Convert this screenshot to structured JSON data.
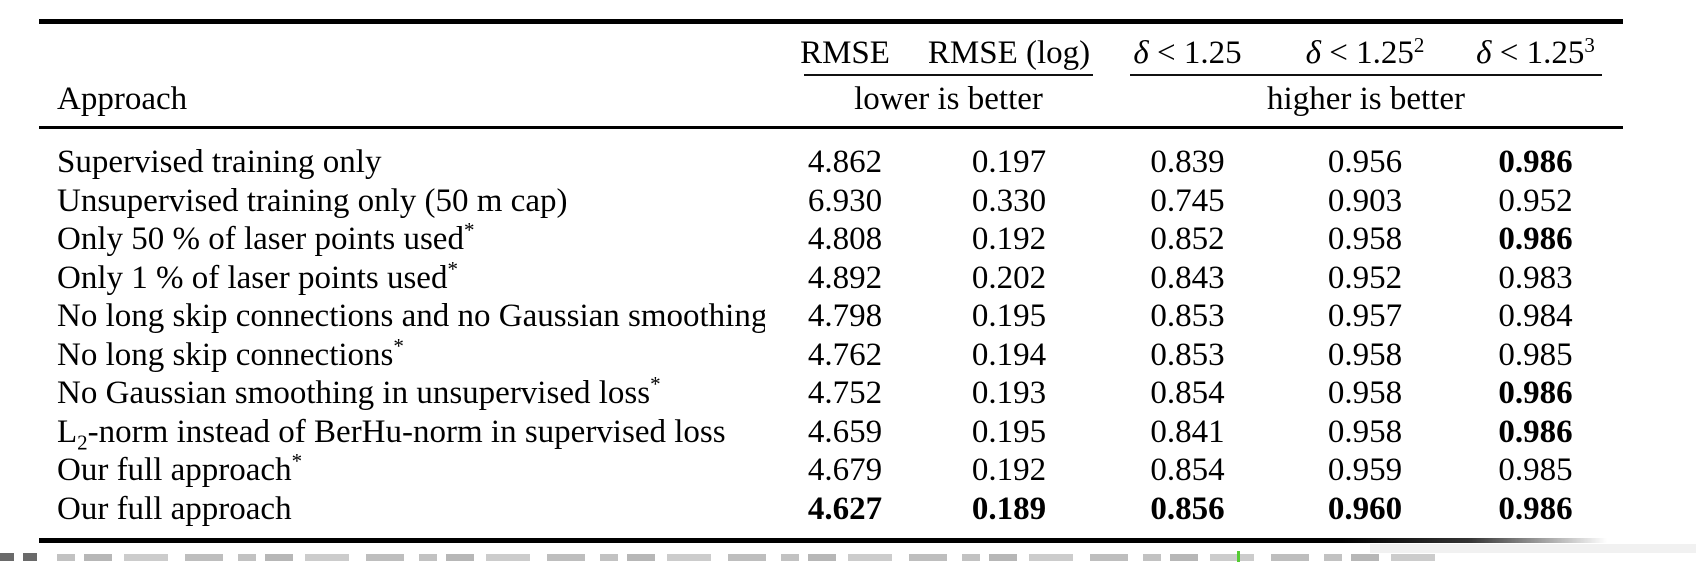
{
  "table": {
    "approach_header": "Approach",
    "columns": [
      {
        "sym": "",
        "label": "RMSE",
        "sup": ""
      },
      {
        "sym": "",
        "label": "RMSE (log)",
        "sup": ""
      },
      {
        "sym": "δ",
        "label": " < 1.25",
        "sup": ""
      },
      {
        "sym": "δ",
        "label": " < 1.25",
        "sup": "2"
      },
      {
        "sym": "δ",
        "label": " < 1.25",
        "sup": "3"
      }
    ],
    "group_labels": {
      "lower": "lower is better",
      "higher": "higher is better"
    },
    "rows": [
      {
        "approach": "Supervised training only",
        "marker": "",
        "values": [
          "4.862",
          "0.197",
          "0.839",
          "0.956",
          "0.986"
        ],
        "bold": [
          false,
          false,
          false,
          false,
          true
        ]
      },
      {
        "approach": "Unsupervised training only (50 m cap)",
        "marker": "",
        "values": [
          "6.930",
          "0.330",
          "0.745",
          "0.903",
          "0.952"
        ],
        "bold": [
          false,
          false,
          false,
          false,
          false
        ]
      },
      {
        "approach": "Only 50 % of laser points used",
        "marker": "*",
        "values": [
          "4.808",
          "0.192",
          "0.852",
          "0.958",
          "0.986"
        ],
        "bold": [
          false,
          false,
          false,
          false,
          true
        ]
      },
      {
        "approach": "Only 1 % of laser points used",
        "marker": "*",
        "values": [
          "4.892",
          "0.202",
          "0.843",
          "0.952",
          "0.983"
        ],
        "bold": [
          false,
          false,
          false,
          false,
          false
        ]
      },
      {
        "approach": "No long skip connections and no Gaussian smoothing",
        "marker": "*",
        "values": [
          "4.798",
          "0.195",
          "0.853",
          "0.957",
          "0.984"
        ],
        "bold": [
          false,
          false,
          false,
          false,
          false
        ]
      },
      {
        "approach": "No long skip connections",
        "marker": "*",
        "values": [
          "4.762",
          "0.194",
          "0.853",
          "0.958",
          "0.985"
        ],
        "bold": [
          false,
          false,
          false,
          false,
          false
        ]
      },
      {
        "approach": "No Gaussian smoothing in unsupervised loss",
        "marker": "*",
        "values": [
          "4.752",
          "0.193",
          "0.854",
          "0.958",
          "0.986"
        ],
        "bold": [
          false,
          false,
          false,
          false,
          true
        ]
      },
      {
        "approach_prefix": "L",
        "approach_sub": "2",
        "approach": "-norm instead of BerHu-norm in supervised loss",
        "marker": "",
        "values": [
          "4.659",
          "0.195",
          "0.841",
          "0.958",
          "0.986"
        ],
        "bold": [
          false,
          false,
          false,
          false,
          true
        ]
      },
      {
        "approach": "Our full approach",
        "marker": "*",
        "values": [
          "4.679",
          "0.192",
          "0.854",
          "0.959",
          "0.985"
        ],
        "bold": [
          false,
          false,
          false,
          false,
          false
        ]
      },
      {
        "approach": "Our full approach",
        "marker": "",
        "values": [
          "4.627",
          "0.189",
          "0.856",
          "0.960",
          "0.986"
        ],
        "bold": [
          true,
          true,
          true,
          true,
          true
        ]
      }
    ]
  },
  "colors": {
    "text": "#000000",
    "rule": "#000000",
    "caption_fragment_gray": "#bdbdbd",
    "caption_fragment_dark": "#6a6a6a",
    "caption_panel_gray": "#f1f1f1",
    "green_mark": "#55cc33"
  }
}
